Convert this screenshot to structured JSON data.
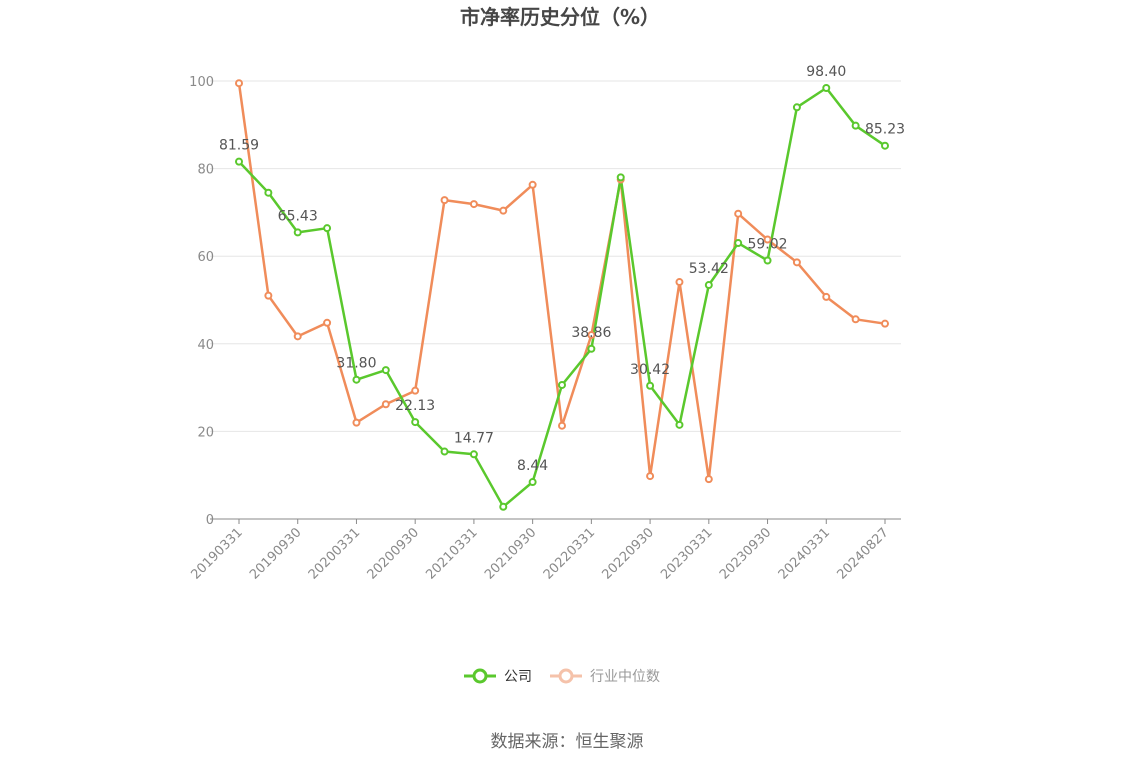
{
  "chart_data": {
    "type": "line",
    "title": "市净率历史分位（%）",
    "x": [
      "20190331",
      "20190630",
      "20190930",
      "20191231",
      "20200331",
      "20200630",
      "20200930",
      "20201231",
      "20210331",
      "20210630",
      "20210930",
      "20211231",
      "20220331",
      "20220630",
      "20220930",
      "20221231",
      "20230331",
      "20230630",
      "20230930",
      "20231231",
      "20240331",
      "20240630",
      "20240827"
    ],
    "x_tick_labels": [
      "20190331",
      "20190930",
      "20200331",
      "20200930",
      "20210331",
      "20210930",
      "20220331",
      "20220930",
      "20230331",
      "20230930",
      "20240331",
      "20240827"
    ],
    "y_ticks": [
      "0",
      "20",
      "40",
      "60",
      "80",
      "100"
    ],
    "ylim": [
      0,
      100
    ],
    "grid": true,
    "legend_position": "bottom-center",
    "series": [
      {
        "name": "公司",
        "color": "#5ac82d",
        "values": [
          81.59,
          74.5,
          65.43,
          66.4,
          31.8,
          34.0,
          22.13,
          15.4,
          14.77,
          2.8,
          8.44,
          30.6,
          38.86,
          78.0,
          30.42,
          21.5,
          53.42,
          63.0,
          59.02,
          94.0,
          98.4,
          89.8,
          85.23
        ],
        "labels": [
          "81.59",
          "",
          "65.43",
          "",
          "31.80",
          "",
          "22.13",
          "",
          "14.77",
          "",
          "8.44",
          "",
          "38.86",
          "",
          "30.42",
          "",
          "53.42",
          "",
          "59.02",
          "",
          "98.40",
          "",
          "85.23"
        ]
      },
      {
        "name": "行业中位数",
        "color": "#f08c5a",
        "values": [
          99.5,
          51.0,
          41.7,
          44.8,
          22.0,
          26.2,
          29.3,
          72.8,
          71.9,
          70.4,
          76.3,
          21.3,
          42.0,
          77.5,
          9.8,
          54.1,
          9.1,
          69.7,
          63.8,
          58.6,
          50.7,
          45.6,
          44.6
        ]
      }
    ]
  },
  "footer": {
    "source": "数据来源：恒生聚源"
  }
}
